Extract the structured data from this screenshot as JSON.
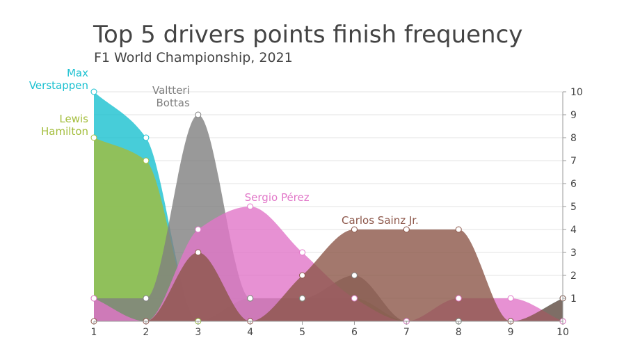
{
  "title": "Top 5 drivers points finish frequency",
  "subtitle": "F1 World Championship, 2021",
  "chart_data": {
    "type": "area",
    "title": "Top 5 drivers points finish frequency",
    "subtitle": "F1 World Championship, 2021",
    "x": [
      1,
      2,
      3,
      4,
      5,
      6,
      7,
      8,
      9,
      10
    ],
    "xlim": [
      1,
      10
    ],
    "ylim": [
      0,
      10
    ],
    "y_axis_position": "right",
    "grid": true,
    "series": [
      {
        "name": "Max Verstappen",
        "label_lines": [
          "Max",
          "Verstappen"
        ],
        "color": "#19c0d0",
        "values": [
          10,
          8,
          0,
          1,
          1,
          1,
          0,
          0,
          0,
          1
        ]
      },
      {
        "name": "Lewis Hamilton",
        "label_lines": [
          "Lewis",
          "Hamilton"
        ],
        "color": "#a3bd3b",
        "values": [
          8,
          7,
          0,
          1,
          1,
          1,
          0,
          0,
          0,
          0
        ]
      },
      {
        "name": "Valtteri Bottas",
        "label_lines": [
          "Valtteri",
          "Bottas"
        ],
        "color": "#7f7f7f",
        "values": [
          1,
          1,
          9,
          1,
          1,
          2,
          0,
          0,
          0,
          0
        ]
      },
      {
        "name": "Sergio Pérez",
        "label_lines": [
          "Sergio Pérez"
        ],
        "color": "#e176c8",
        "values": [
          1,
          0,
          4,
          5,
          3,
          1,
          0,
          1,
          1,
          0
        ]
      },
      {
        "name": "Carlos Sainz Jr.",
        "label_lines": [
          "Carlos Sainz Jr."
        ],
        "color": "#8c5649",
        "values": [
          0,
          0,
          3,
          0,
          2,
          4,
          4,
          4,
          0,
          1
        ]
      }
    ]
  }
}
